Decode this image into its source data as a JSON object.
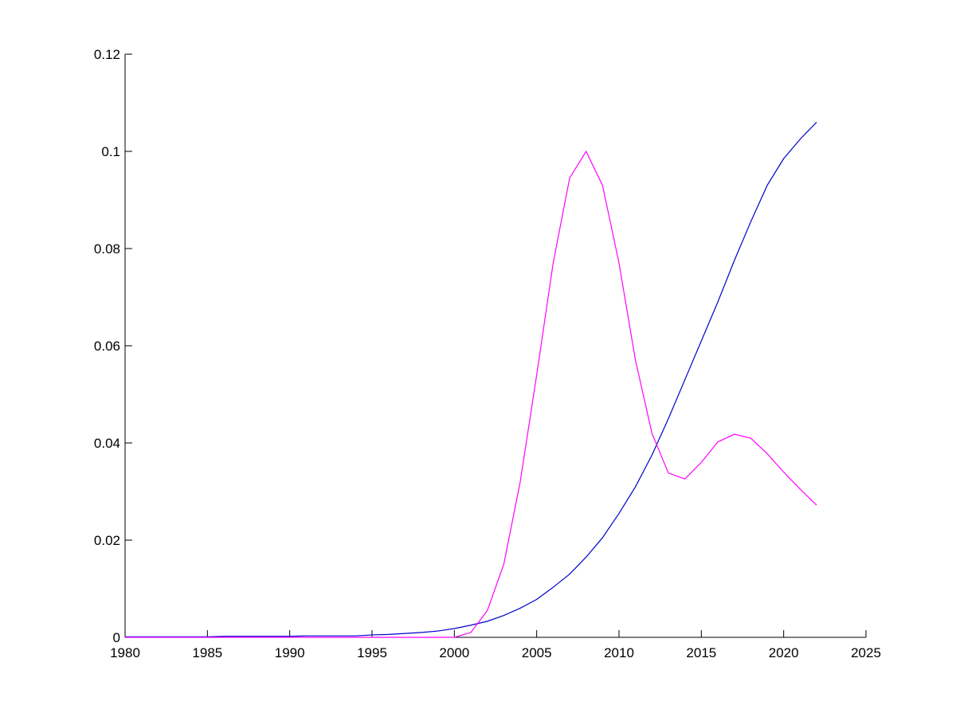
{
  "chart_data": {
    "type": "line",
    "x": [
      1980,
      1981,
      1982,
      1983,
      1984,
      1985,
      1986,
      1987,
      1988,
      1989,
      1990,
      1991,
      1992,
      1993,
      1994,
      1995,
      1996,
      1997,
      1998,
      1999,
      2000,
      2001,
      2002,
      2003,
      2004,
      2005,
      2006,
      2007,
      2008,
      2009,
      2010,
      2011,
      2012,
      2013,
      2014,
      2015,
      2016,
      2017,
      2018,
      2019,
      2020,
      2021,
      2022
    ],
    "series": [
      {
        "color": "#0000cc",
        "values": [
          0.0001,
          0.0001,
          0.0001,
          0.0001,
          0.0001,
          0.0001,
          0.0002,
          0.0002,
          0.0002,
          0.0002,
          0.0002,
          0.0003,
          0.0003,
          0.0003,
          0.0003,
          0.0005,
          0.0006,
          0.0008,
          0.001,
          0.0013,
          0.0018,
          0.0025,
          0.0033,
          0.0045,
          0.006,
          0.0078,
          0.0103,
          0.013,
          0.0165,
          0.0205,
          0.0255,
          0.031,
          0.0375,
          0.045,
          0.053,
          0.061,
          0.069,
          0.0775,
          0.0855,
          0.093,
          0.0985,
          0.1025,
          0.106
        ]
      },
      {
        "color": "#ff00ff",
        "values": [
          0,
          0,
          0,
          0,
          0,
          0,
          0,
          0,
          0,
          0,
          0,
          0,
          0,
          0,
          0,
          0,
          0,
          0,
          0,
          0,
          0,
          0.001,
          0.0055,
          0.015,
          0.032,
          0.054,
          0.077,
          0.0945,
          0.1,
          0.093,
          0.077,
          0.057,
          0.042,
          0.0338,
          0.0326,
          0.036,
          0.0402,
          0.0418,
          0.041,
          0.0378,
          0.034,
          0.0305,
          0.0272
        ]
      }
    ],
    "xlim": [
      1980,
      2025
    ],
    "xticks": [
      1980,
      1985,
      1990,
      1995,
      2000,
      2005,
      2010,
      2015,
      2020,
      2025
    ],
    "ylim": [
      0,
      0.12
    ],
    "yticks": [
      0,
      0.02,
      0.04,
      0.06,
      0.08,
      0.1,
      0.12
    ]
  }
}
